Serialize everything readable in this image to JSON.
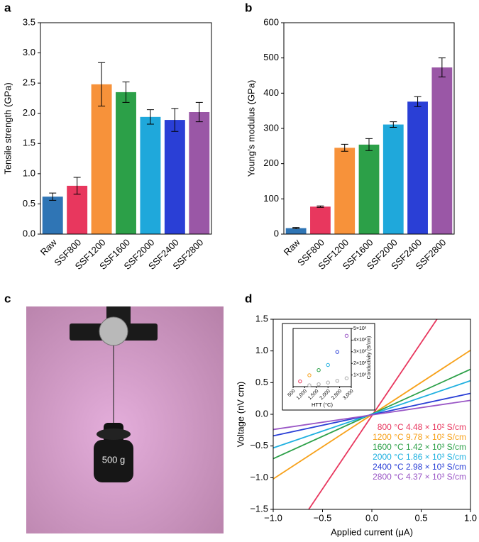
{
  "chart_data": [
    {
      "type": "bar",
      "panel": "a",
      "ylabel": "Tensile strength (GPa)",
      "categories": [
        "Raw",
        "SSF800",
        "SSF1200",
        "SSF1600",
        "SSF2000",
        "SSF2400",
        "SSF2800"
      ],
      "values": [
        0.62,
        0.8,
        2.48,
        2.35,
        1.94,
        1.89,
        2.02
      ],
      "errors": [
        0.06,
        0.14,
        0.36,
        0.17,
        0.12,
        0.19,
        0.16
      ],
      "colors": [
        "#2f75b5",
        "#e8375e",
        "#f7923a",
        "#2ca048",
        "#1fa8db",
        "#2a3fd6",
        "#9a57a6"
      ],
      "ylim": [
        0,
        3.5
      ],
      "yticks": [
        {
          "value": 0,
          "label": "0.0"
        },
        0.5,
        {
          "value": 1,
          "label": "1.0"
        },
        1.5,
        {
          "value": 2,
          "label": "2.0"
        },
        2.5,
        {
          "value": 3,
          "label": "3.0"
        },
        3.5
      ]
    },
    {
      "type": "bar",
      "panel": "b",
      "ylabel": "Young’s modulus (GPa)",
      "categories": [
        "Raw",
        "SSF800",
        "SSF1200",
        "SSF1600",
        "SSF2000",
        "SSF2400",
        "SSF2800"
      ],
      "values": [
        17,
        78,
        245,
        254,
        311,
        376,
        473
      ],
      "errors": [
        2,
        2,
        10,
        17,
        8,
        14,
        27
      ],
      "colors": [
        "#2f75b5",
        "#e8375e",
        "#f7923a",
        "#2ca048",
        "#1fa8db",
        "#2a3fd6",
        "#9a57a6"
      ],
      "ylim": [
        0,
        600
      ],
      "yticks": [
        0,
        100,
        200,
        300,
        400,
        500,
        600
      ]
    },
    {
      "type": "image",
      "panel": "c",
      "label": "500 g"
    },
    {
      "type": "line",
      "panel": "d",
      "xlabel": "Applied current (μA)",
      "ylabel": "Voltage (nV cm)",
      "xlim": [
        -1,
        1
      ],
      "ylim": [
        -1.5,
        1.5
      ],
      "xticks": [
        {
          "value": -1,
          "label": "−1.0"
        },
        {
          "value": -0.5,
          "label": "−0.5"
        },
        {
          "value": 0,
          "label": "0.0"
        },
        0.5,
        {
          "value": 1,
          "label": "1.0"
        }
      ],
      "yticks": [
        {
          "value": -1.5,
          "label": "−1.5"
        },
        {
          "value": -1,
          "label": "−1.0"
        },
        {
          "value": -0.5,
          "label": "−0.5"
        },
        {
          "value": 0,
          "label": "0.0"
        },
        0.5,
        {
          "value": 1,
          "label": "1.0"
        },
        1.5
      ],
      "series": [
        {
          "name": "800 °C   4.48 × 10² S/cm",
          "color": "#e8375e",
          "x": [
            -0.64,
            0.66
          ],
          "values": [
            -1.5,
            1.5
          ]
        },
        {
          "name": "1200 °C   9.78 × 10² S/cm",
          "color": "#f7a11a",
          "x": [
            -1,
            1
          ],
          "values": [
            -1.02,
            1.01
          ]
        },
        {
          "name": "1600 °C   1.42 × 10³ S/cm",
          "color": "#2ca048",
          "x": [
            -1,
            1
          ],
          "values": [
            -0.7,
            0.71
          ]
        },
        {
          "name": "2000 °C   1.86 × 10³ S/cm",
          "color": "#1fb0e0",
          "x": [
            -1,
            1
          ],
          "values": [
            -0.53,
            0.53
          ]
        },
        {
          "name": "2400 °C   2.98 × 10³ S/cm",
          "color": "#2a3fd6",
          "x": [
            -1,
            1
          ],
          "values": [
            -0.34,
            0.33
          ]
        },
        {
          "name": "2800 °C   4.37 × 10³ S/cm",
          "color": "#9a57c6",
          "x": [
            -1,
            1
          ],
          "values": [
            -0.24,
            0.22
          ]
        }
      ],
      "inset": {
        "type": "scatter",
        "xlabel": "HTT (°C)",
        "ylabel": "Conductivity (S/cm)",
        "xlim": [
          500,
          3000
        ],
        "ylim": [
          0,
          5000
        ],
        "xticks": [
          500,
          {
            "value": 1000,
            "label": "1,000"
          },
          {
            "value": 1500,
            "label": "1,500"
          },
          {
            "value": 2000,
            "label": "2,000"
          },
          {
            "value": 2500,
            "label": "2,500"
          },
          {
            "value": 3000,
            "label": "3,000"
          }
        ],
        "yticks": [
          {
            "value": 1000,
            "label": "1×10³"
          },
          {
            "value": 2000,
            "label": "2×10³"
          },
          {
            "value": 3000,
            "label": "3×10³"
          },
          {
            "value": 4000,
            "label": "4×10³"
          },
          {
            "value": 5000,
            "label": "5×10³"
          }
        ],
        "series": [
          {
            "x": [
              800,
              1200,
              1600,
              2000,
              2400,
              2800
            ],
            "values": [
              448,
              978,
              1420,
              1860,
              2980,
              4370
            ],
            "colors": [
              "#e8375e",
              "#f7a11a",
              "#2ca048",
              "#1fb0e0",
              "#2a3fd6",
              "#9a57c6"
            ]
          },
          {
            "x": [
              1200,
              1600,
              2000,
              2400,
              2800
            ],
            "values": [
              120,
              200,
              350,
              500,
              720
            ],
            "color": "#aaaaaa"
          }
        ]
      }
    }
  ]
}
